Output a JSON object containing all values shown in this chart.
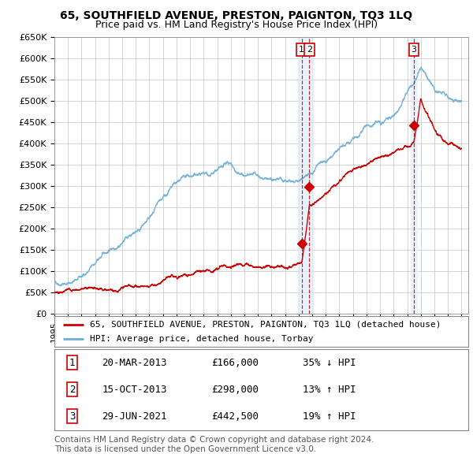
{
  "title": "65, SOUTHFIELD AVENUE, PRESTON, PAIGNTON, TQ3 1LQ",
  "subtitle": "Price paid vs. HM Land Registry's House Price Index (HPI)",
  "ylim": [
    0,
    650000
  ],
  "yticks": [
    0,
    50000,
    100000,
    150000,
    200000,
    250000,
    300000,
    350000,
    400000,
    450000,
    500000,
    550000,
    600000,
    650000
  ],
  "ytick_labels": [
    "£0",
    "£50K",
    "£100K",
    "£150K",
    "£200K",
    "£250K",
    "£300K",
    "£350K",
    "£400K",
    "£450K",
    "£500K",
    "£550K",
    "£600K",
    "£650K"
  ],
  "xlim_start": 1995.0,
  "xlim_end": 2025.5,
  "hpi_color": "#6baed6",
  "price_color": "#cc0000",
  "grid_color": "#cccccc",
  "background_color": "#ffffff",
  "transactions": [
    {
      "year": 2013.22,
      "price": 166000,
      "label": "1"
    },
    {
      "year": 2013.79,
      "price": 298000,
      "label": "2"
    },
    {
      "year": 2021.49,
      "price": 442500,
      "label": "3"
    }
  ],
  "transaction_vline_color": "#cc0000",
  "vline_band_color": "#ddeeff",
  "legend_label_red": "65, SOUTHFIELD AVENUE, PRESTON, PAIGNTON, TQ3 1LQ (detached house)",
  "legend_label_blue": "HPI: Average price, detached house, Torbay",
  "table_rows": [
    [
      "1",
      "20-MAR-2013",
      "£166,000",
      "35% ↓ HPI"
    ],
    [
      "2",
      "15-OCT-2013",
      "£298,000",
      "13% ↑ HPI"
    ],
    [
      "3",
      "29-JUN-2021",
      "£442,500",
      "19% ↑ HPI"
    ]
  ],
  "footer": "Contains HM Land Registry data © Crown copyright and database right 2024.\nThis data is licensed under the Open Government Licence v3.0.",
  "title_fontsize": 10,
  "subtitle_fontsize": 9,
  "tick_fontsize": 8,
  "legend_fontsize": 8.5,
  "table_fontsize": 9,
  "footer_fontsize": 7.5
}
